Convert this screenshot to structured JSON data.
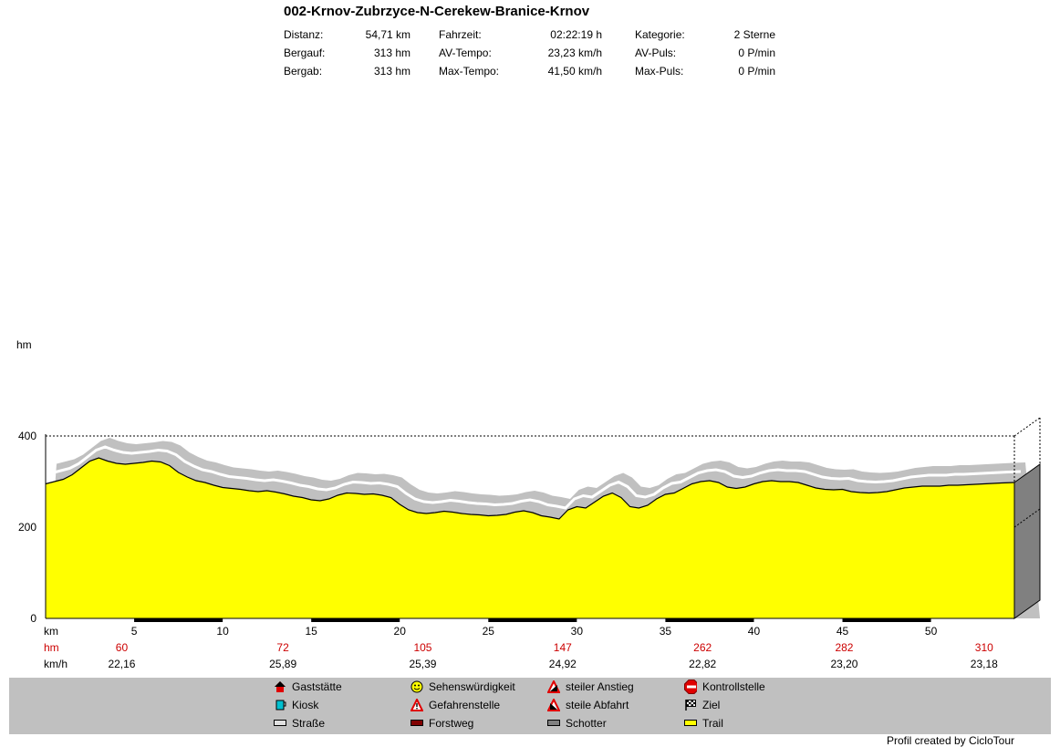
{
  "header": {
    "title": "002-Krnov-Zubrzyce-N-Cerekew-Branice-Krnov",
    "stats": [
      {
        "label": "Distanz:",
        "value": "54,71 km"
      },
      {
        "label": "Bergauf:",
        "value": "313 hm"
      },
      {
        "label": "Bergab:",
        "value": "313 hm"
      },
      {
        "label": "Fahrzeit:",
        "value": "02:22:19 h"
      },
      {
        "label": "AV-Tempo:",
        "value": "23,23 km/h"
      },
      {
        "label": "Max-Tempo:",
        "value": "41,50 km/h"
      },
      {
        "label": "Kategorie:",
        "value": "2 Sterne"
      },
      {
        "label": "AV-Puls:",
        "value": "0 P/min"
      },
      {
        "label": "Max-Puls:",
        "value": "0 P/min"
      }
    ]
  },
  "chart_data": {
    "type": "area",
    "ylabel": "hm",
    "xlabel": "km",
    "xlim": [
      0,
      54.71
    ],
    "ylim": [
      0,
      400
    ],
    "yticks": [
      0,
      200,
      400
    ],
    "xticks": [
      5,
      10,
      15,
      20,
      25,
      30,
      35,
      40,
      45,
      50
    ],
    "series": [
      {
        "color": "#ffff00",
        "x": [
          0,
          0.5,
          1,
          1.5,
          2,
          2.5,
          3,
          3.5,
          4,
          4.5,
          5,
          5.5,
          6,
          6.5,
          7,
          7.5,
          8,
          8.5,
          9,
          9.5,
          10,
          10.5,
          11,
          11.5,
          12,
          12.5,
          13,
          13.5,
          14,
          14.5,
          15,
          15.5,
          16,
          16.5,
          17,
          17.5,
          18,
          18.5,
          19,
          19.5,
          20,
          20.5,
          21,
          21.5,
          22,
          22.5,
          23,
          23.5,
          24,
          24.5,
          25,
          25.5,
          26,
          26.5,
          27,
          27.5,
          28,
          28.5,
          29,
          29.5,
          30,
          30.5,
          31,
          31.5,
          32,
          32.5,
          33,
          33.5,
          34,
          34.5,
          35,
          35.5,
          36,
          36.5,
          37,
          37.5,
          38,
          38.5,
          39,
          39.5,
          40,
          40.5,
          41,
          41.5,
          42,
          42.5,
          43,
          43.5,
          44,
          44.5,
          45,
          45.5,
          46,
          46.5,
          47,
          47.5,
          48,
          48.5,
          49,
          49.5,
          50,
          50.5,
          51,
          51.5,
          52,
          52.5,
          53,
          53.5,
          54,
          54.71
        ],
        "values": [
          295,
          300,
          305,
          315,
          330,
          345,
          352,
          345,
          340,
          338,
          340,
          342,
          345,
          343,
          335,
          320,
          310,
          302,
          298,
          292,
          287,
          285,
          283,
          280,
          278,
          280,
          277,
          273,
          268,
          265,
          260,
          258,
          262,
          270,
          275,
          274,
          272,
          273,
          270,
          265,
          250,
          238,
          232,
          230,
          232,
          235,
          233,
          230,
          228,
          227,
          225,
          226,
          228,
          233,
          236,
          232,
          225,
          222,
          218,
          238,
          245,
          242,
          255,
          268,
          275,
          265,
          245,
          242,
          248,
          262,
          272,
          275,
          285,
          295,
          300,
          302,
          298,
          288,
          285,
          288,
          295,
          300,
          302,
          300,
          300,
          298,
          292,
          286,
          283,
          282,
          283,
          278,
          276,
          275,
          276,
          278,
          282,
          286,
          288,
          290,
          290,
          290,
          292,
          292,
          293,
          294,
          295,
          296,
          297,
          298
        ]
      }
    ],
    "rows": [
      {
        "label": "hm",
        "color": "#cc0000",
        "values": [
          {
            "x": 4.3,
            "text": "60"
          },
          {
            "x": 13.4,
            "text": "72"
          },
          {
            "x": 21.3,
            "text": "105"
          },
          {
            "x": 29.2,
            "text": "147"
          },
          {
            "x": 37.1,
            "text": "262"
          },
          {
            "x": 45.1,
            "text": "282"
          },
          {
            "x": 53.0,
            "text": "310"
          }
        ]
      },
      {
        "label": "km/h",
        "color": "#000000",
        "values": [
          {
            "x": 4.3,
            "text": "22,16"
          },
          {
            "x": 13.4,
            "text": "25,89"
          },
          {
            "x": 21.3,
            "text": "25,39"
          },
          {
            "x": 29.2,
            "text": "24,92"
          },
          {
            "x": 37.1,
            "text": "22,82"
          },
          {
            "x": 45.1,
            "text": "23,20"
          },
          {
            "x": 53.0,
            "text": "23,18"
          }
        ]
      }
    ],
    "colors": {
      "fill": "#ffff00",
      "shadow": "#c0c0c0",
      "side": "#808080"
    },
    "grid": "dashed at 200 and 400"
  },
  "legend": {
    "items": [
      {
        "label": "Gaststätte",
        "icon": "house-icon"
      },
      {
        "label": "Kiosk",
        "icon": "cup-icon"
      },
      {
        "label": "Straße",
        "icon": "road-swatch-icon"
      },
      {
        "label": "Sehenswürdigkeit",
        "icon": "smiley-icon"
      },
      {
        "label": "Gefahrenstelle",
        "icon": "warning-icon"
      },
      {
        "label": "Forstweg",
        "icon": "forest-swatch-icon"
      },
      {
        "label": "steiler Anstieg",
        "icon": "steep-up-icon"
      },
      {
        "label": "steile Abfahrt",
        "icon": "steep-down-icon"
      },
      {
        "label": "Schotter",
        "icon": "gravel-swatch-icon"
      },
      {
        "label": "Kontrollstelle",
        "icon": "stop-icon"
      },
      {
        "label": "Ziel",
        "icon": "finish-flag-icon"
      },
      {
        "label": "Trail",
        "icon": "trail-swatch-icon"
      }
    ]
  },
  "footer": {
    "credit": "Profil created by CicloTour"
  }
}
